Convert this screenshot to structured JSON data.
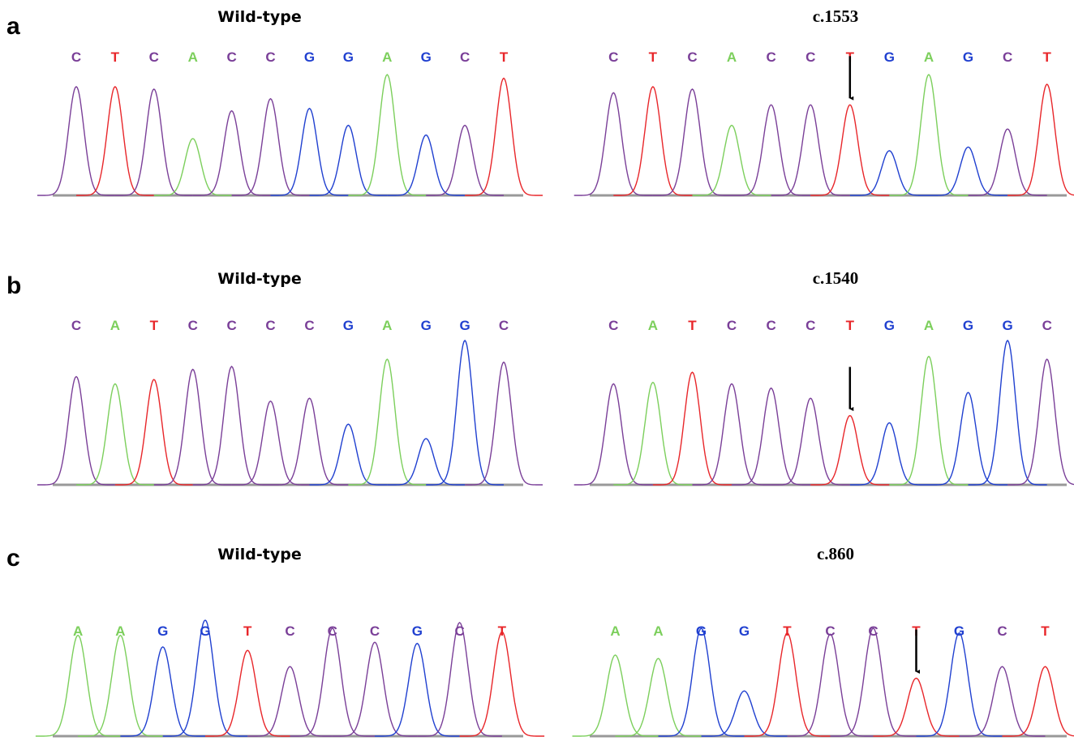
{
  "panels": [
    {
      "label": "a",
      "wild": {
        "title": "Wild-type",
        "bases": [
          "C",
          "T",
          "C",
          "A",
          "C",
          "C",
          "G",
          "G",
          "A",
          "G",
          "C",
          "T"
        ]
      },
      "mutant": {
        "title": "c.1553",
        "bases": [
          "C",
          "T",
          "C",
          "A",
          "C",
          "C",
          "T",
          "G",
          "A",
          "G",
          "C",
          "T"
        ]
      }
    },
    {
      "label": "b",
      "wild": {
        "title": "Wild-type",
        "bases": [
          "C",
          "A",
          "T",
          "C",
          "C",
          "C",
          "C",
          "G",
          "A",
          "G",
          "G",
          "C"
        ]
      },
      "mutant": {
        "title": "c.1540",
        "bases": [
          "C",
          "A",
          "T",
          "C",
          "C",
          "C",
          "T",
          "G",
          "A",
          "G",
          "G",
          "C"
        ]
      }
    },
    {
      "label": "c",
      "wild": {
        "title": "Wild-type",
        "bases": [
          "A",
          "A",
          "G",
          "G",
          "T",
          "C",
          "C",
          "C",
          "G",
          "C",
          "T"
        ]
      },
      "mutant": {
        "title": "c.860",
        "bases": [
          "A",
          "A",
          "G",
          "G",
          "T",
          "C",
          "C",
          "T",
          "G",
          "C",
          "T"
        ]
      }
    }
  ]
}
